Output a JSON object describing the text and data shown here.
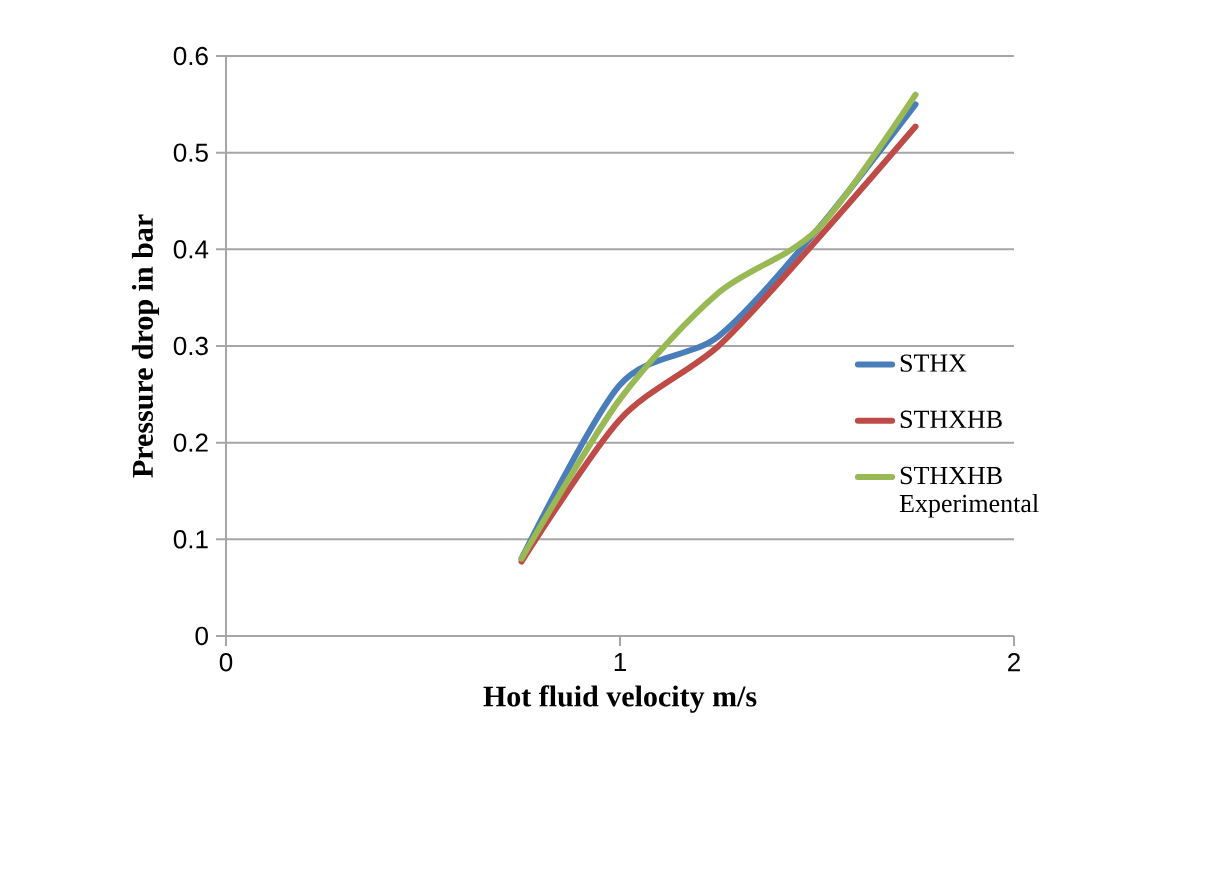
{
  "chart_data": {
    "type": "line",
    "xlabel": "Hot fluid velocity m/s",
    "ylabel": "Pressure drop in bar",
    "x": [
      0.75,
      1.0,
      1.25,
      1.5,
      1.75
    ],
    "series": [
      {
        "name": "STHX",
        "color": "#4a7ebb",
        "values": [
          0.08,
          0.26,
          0.31,
          0.42,
          0.55
        ]
      },
      {
        "name": "STHXHB",
        "color": "#be4b48",
        "values": [
          0.077,
          0.224,
          0.3,
          0.41,
          0.527
        ]
      },
      {
        "name": "STHXHB Experimental",
        "color": "#98b954",
        "values": [
          0.08,
          0.245,
          0.355,
          0.42,
          0.56
        ]
      }
    ],
    "xlim": [
      0,
      2
    ],
    "ylim": [
      0,
      0.6
    ],
    "xticks": [
      0,
      1,
      2
    ],
    "yticks": [
      0,
      0.1,
      0.2,
      0.3,
      0.4,
      0.5,
      0.6
    ],
    "grid": "y",
    "legend": "right",
    "line_style": "solid"
  }
}
